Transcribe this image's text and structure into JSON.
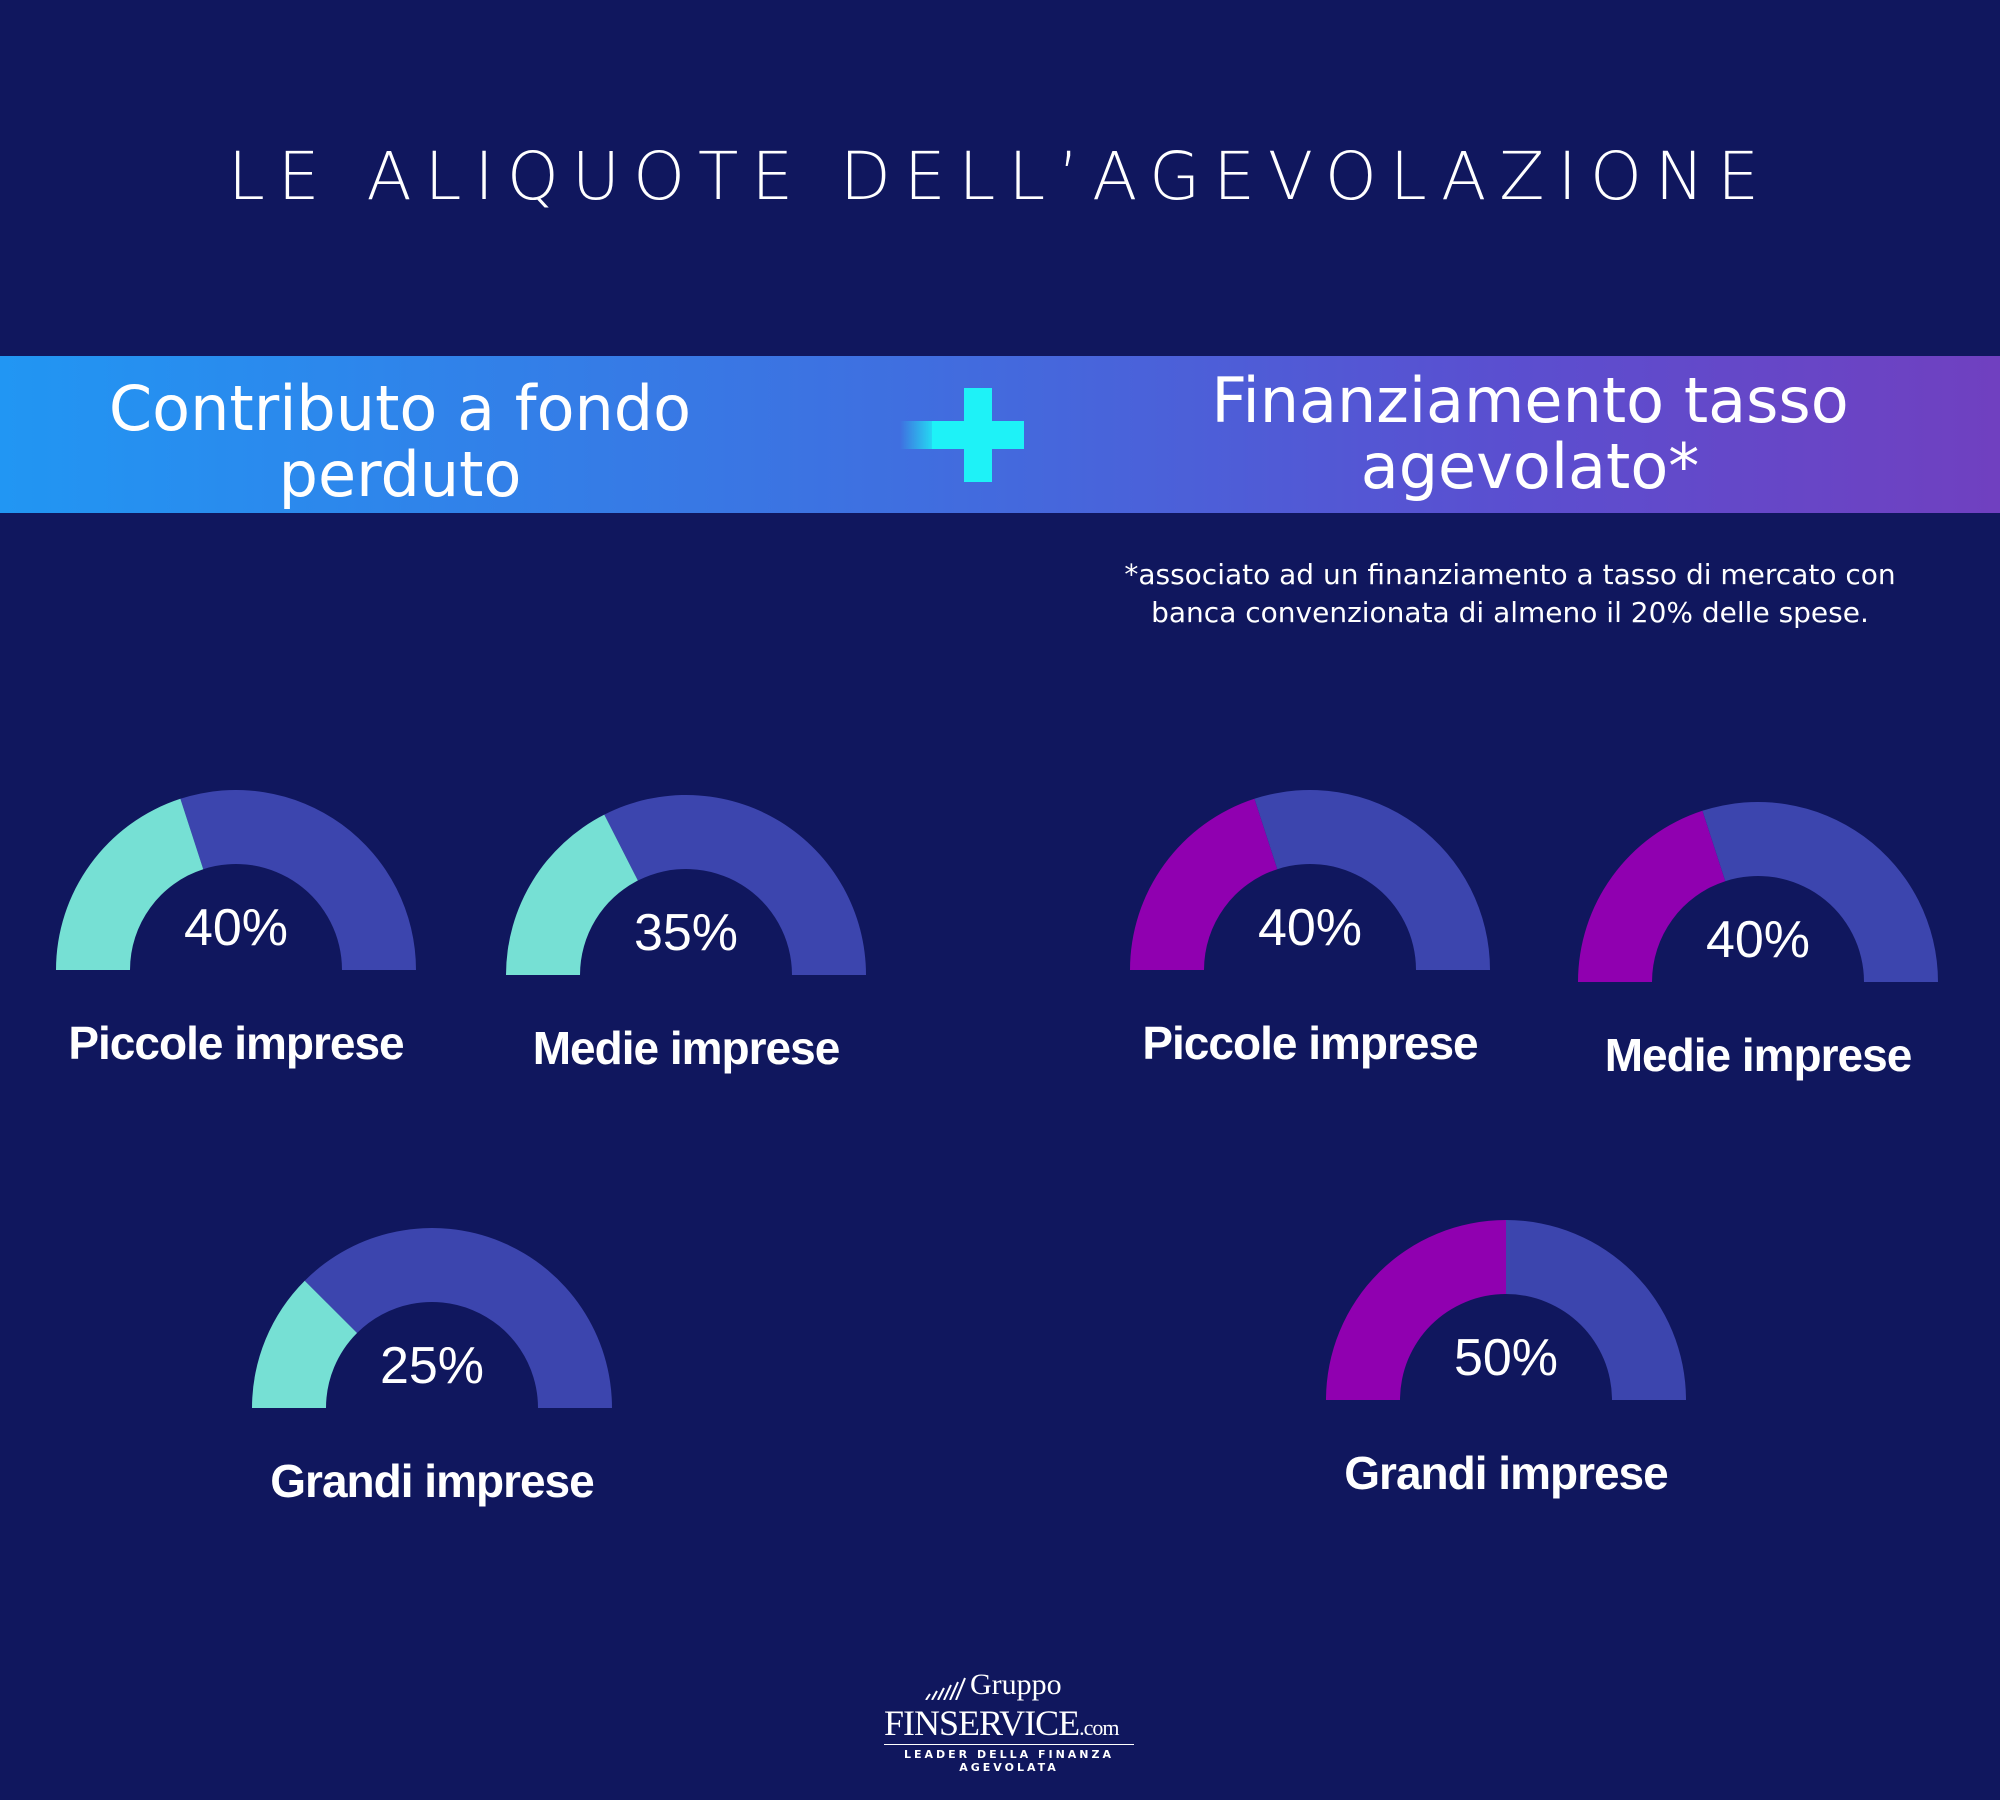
{
  "title": "LE ALIQUOTE DELL’AGEVOLAZIONE",
  "band": {
    "left_line1": "Contributo a fondo",
    "left_line2": "perduto",
    "right_line1": "Finanziamento tasso",
    "right_line2": "agevolato*"
  },
  "note": {
    "line1": "*associato ad un finanziamento a tasso di mercato con",
    "line2": "banca convenzionata di almeno il 20% delle spese."
  },
  "colors": {
    "background": "#10175e",
    "track": "#3c45ae",
    "contributo": "#76e0d4",
    "finanziamento": "#9000b0",
    "plus": "#1ef2f7"
  },
  "chart_data": [
    {
      "type": "gauge",
      "title": "Contributo a fondo perduto",
      "categories": [
        "Piccole imprese",
        "Medie imprese",
        "Grandi imprese"
      ],
      "values": [
        40,
        35,
        25
      ],
      "value_labels": [
        "40%",
        "35%",
        "25%"
      ],
      "ylim": [
        0,
        100
      ]
    },
    {
      "type": "gauge",
      "title": "Finanziamento tasso agevolato*",
      "categories": [
        "Piccole imprese",
        "Medie imprese",
        "Grandi imprese"
      ],
      "values": [
        40,
        40,
        50
      ],
      "value_labels": [
        "40%",
        "40%",
        "50%"
      ],
      "ylim": [
        0,
        100
      ]
    }
  ],
  "logo": {
    "line1": "Gruppo",
    "line2": "FINSERVICE",
    "domain": ".com",
    "tagline": "LEADER DELLA FINANZA AGEVOLATA"
  }
}
